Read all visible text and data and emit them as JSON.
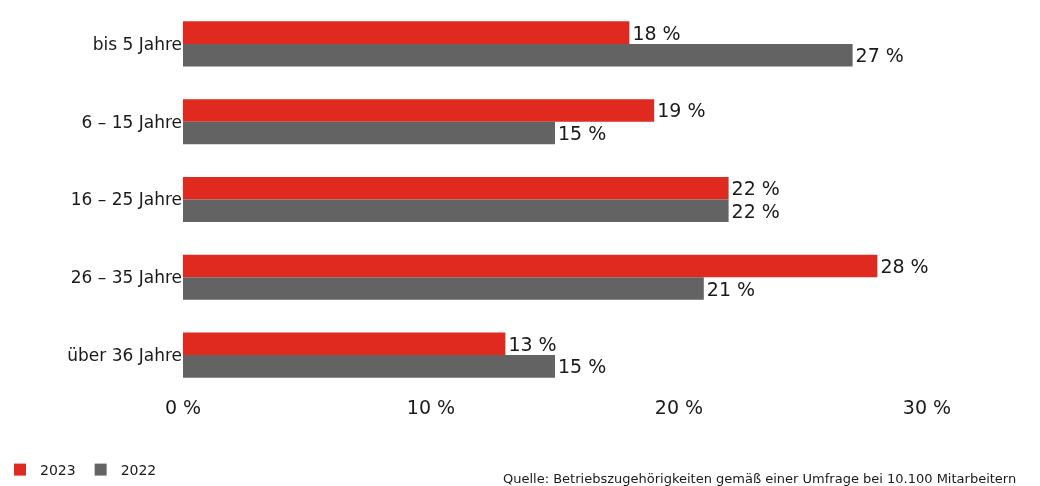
{
  "chart_data": {
    "type": "bar",
    "orientation": "horizontal",
    "categories": [
      "bis 5 Jahre",
      "6 – 15 Jahre",
      "16 – 25 Jahre",
      "26 – 35 Jahre",
      "über 36 Jahre"
    ],
    "series": [
      {
        "name": "2023",
        "color": "#e0291f",
        "values": [
          18,
          19,
          22,
          28,
          13
        ],
        "value_labels": [
          "18 %",
          "19 %",
          "22 %",
          "28 %",
          "13 %"
        ]
      },
      {
        "name": "2022",
        "color": "#646363",
        "values": [
          27,
          15,
          22,
          21,
          15
        ],
        "value_labels": [
          "27 %",
          "15 %",
          "22 %",
          "21 %",
          "15 %"
        ]
      }
    ],
    "xlim": [
      0,
      30
    ],
    "xticks": [
      {
        "value": 0,
        "label": "0 %"
      },
      {
        "value": 10,
        "label": "10 %"
      },
      {
        "value": 20,
        "label": "20 %"
      },
      {
        "value": 30,
        "label": "30 %"
      }
    ],
    "legend": "bottom left",
    "annotations": [
      "Quelle: Betriebszugehörigkeiten gemäß einer Umfrage bei 10.100 Mitarbeitern"
    ]
  }
}
